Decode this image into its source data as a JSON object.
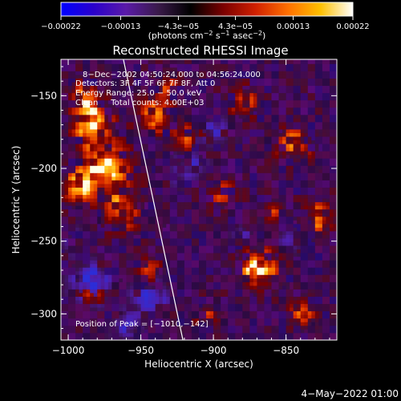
{
  "chart_data": {
    "type": "heatmap",
    "title": "Reconstructed RHESSI Image",
    "xlabel": "Heliocentric X (arcsec)",
    "ylabel": "Heliocentric Y (arcsec)",
    "xlim": [
      -1005,
      -815
    ],
    "ylim": [
      -318,
      -125
    ],
    "xticks": [
      -1000,
      -950,
      -900,
      -850
    ],
    "xtick_labels": [
      "−1000",
      "−950",
      "−900",
      "−850"
    ],
    "yticks": [
      -150,
      -200,
      -250,
      -300
    ],
    "ytick_labels": [
      "−150",
      "−200",
      "−250",
      "−300"
    ],
    "colorbar": {
      "range": [
        -0.00022,
        0.00022
      ],
      "ticks": [
        -0.00022,
        -0.00013,
        -4.3e-05,
        4.3e-05,
        0.00013,
        0.00022
      ],
      "tick_labels": [
        "−0.00022",
        "−0.00013",
        "−4.3e−05",
        "4.3e−05",
        "0.00013",
        "0.00022"
      ],
      "unit_main": "(photons cm",
      "unit_sup1": "−2",
      "unit_mid1": " s",
      "unit_sup2": "−1",
      "unit_mid2": " asec",
      "unit_sup3": "−2",
      "unit_end": ")",
      "colormap": [
        "#0000ff",
        "#2a00cc",
        "#5a1aa8",
        "#3a1a4a",
        "#000000",
        "#7a0000",
        "#d02000",
        "#ff7000",
        "#ffc000",
        "#ffffff"
      ]
    },
    "annotations": {
      "time_range": "8−Dec−2002 04:50:24.000 to 04:56:24.000",
      "detectors": "Detectors: 3F 4F 5F 6F 7F 8F, Att 0",
      "energy": "Energy Range: 25.0 − 50.0 keV",
      "method": "Clean     Total counts: 4.00E+03",
      "peak": "Position of Peak = [−1010,−142]"
    },
    "limb_line": [
      [
        -962,
        -125
      ],
      [
        -921,
        -318
      ]
    ],
    "heat_blobs": [
      {
        "x": -985,
        "y": -170,
        "r": 14,
        "v": 0.9
      },
      {
        "x": -975,
        "y": -200,
        "r": 16,
        "v": 1.0
      },
      {
        "x": -995,
        "y": -215,
        "r": 12,
        "v": 0.8
      },
      {
        "x": -965,
        "y": -230,
        "r": 14,
        "v": 0.7
      },
      {
        "x": -990,
        "y": -150,
        "r": 10,
        "v": 0.6
      },
      {
        "x": -940,
        "y": -165,
        "r": 12,
        "v": 0.85
      },
      {
        "x": -935,
        "y": -145,
        "r": 9,
        "v": 0.6
      },
      {
        "x": -920,
        "y": -180,
        "r": 10,
        "v": 0.55
      },
      {
        "x": -880,
        "y": -155,
        "r": 10,
        "v": 0.6
      },
      {
        "x": -895,
        "y": -220,
        "r": 11,
        "v": 0.5
      },
      {
        "x": -870,
        "y": -270,
        "r": 13,
        "v": 0.95
      },
      {
        "x": -845,
        "y": -185,
        "r": 12,
        "v": 0.7
      },
      {
        "x": -830,
        "y": -235,
        "r": 11,
        "v": 0.65
      },
      {
        "x": -840,
        "y": -300,
        "r": 10,
        "v": 0.6
      },
      {
        "x": -905,
        "y": -300,
        "r": 9,
        "v": 0.55
      },
      {
        "x": -945,
        "y": -270,
        "r": 9,
        "v": 0.45
      },
      {
        "x": -985,
        "y": -290,
        "r": 8,
        "v": 0.4
      },
      {
        "x": -860,
        "y": -230,
        "r": 7,
        "v": 0.45
      }
    ],
    "cold_blobs": [
      {
        "x": -985,
        "y": -280,
        "r": 14,
        "v": 0.9
      },
      {
        "x": -945,
        "y": -290,
        "r": 12,
        "v": 0.8
      },
      {
        "x": -920,
        "y": -200,
        "r": 13,
        "v": 0.6
      },
      {
        "x": -900,
        "y": -175,
        "r": 10,
        "v": 0.5
      },
      {
        "x": -960,
        "y": -310,
        "r": 9,
        "v": 0.7
      },
      {
        "x": -880,
        "y": -245,
        "r": 8,
        "v": 0.4
      },
      {
        "x": -850,
        "y": -250,
        "r": 8,
        "v": 0.4
      },
      {
        "x": -1000,
        "y": -250,
        "r": 8,
        "v": 0.5
      }
    ]
  },
  "footer": {
    "date": "4−May−2022 01:00"
  }
}
